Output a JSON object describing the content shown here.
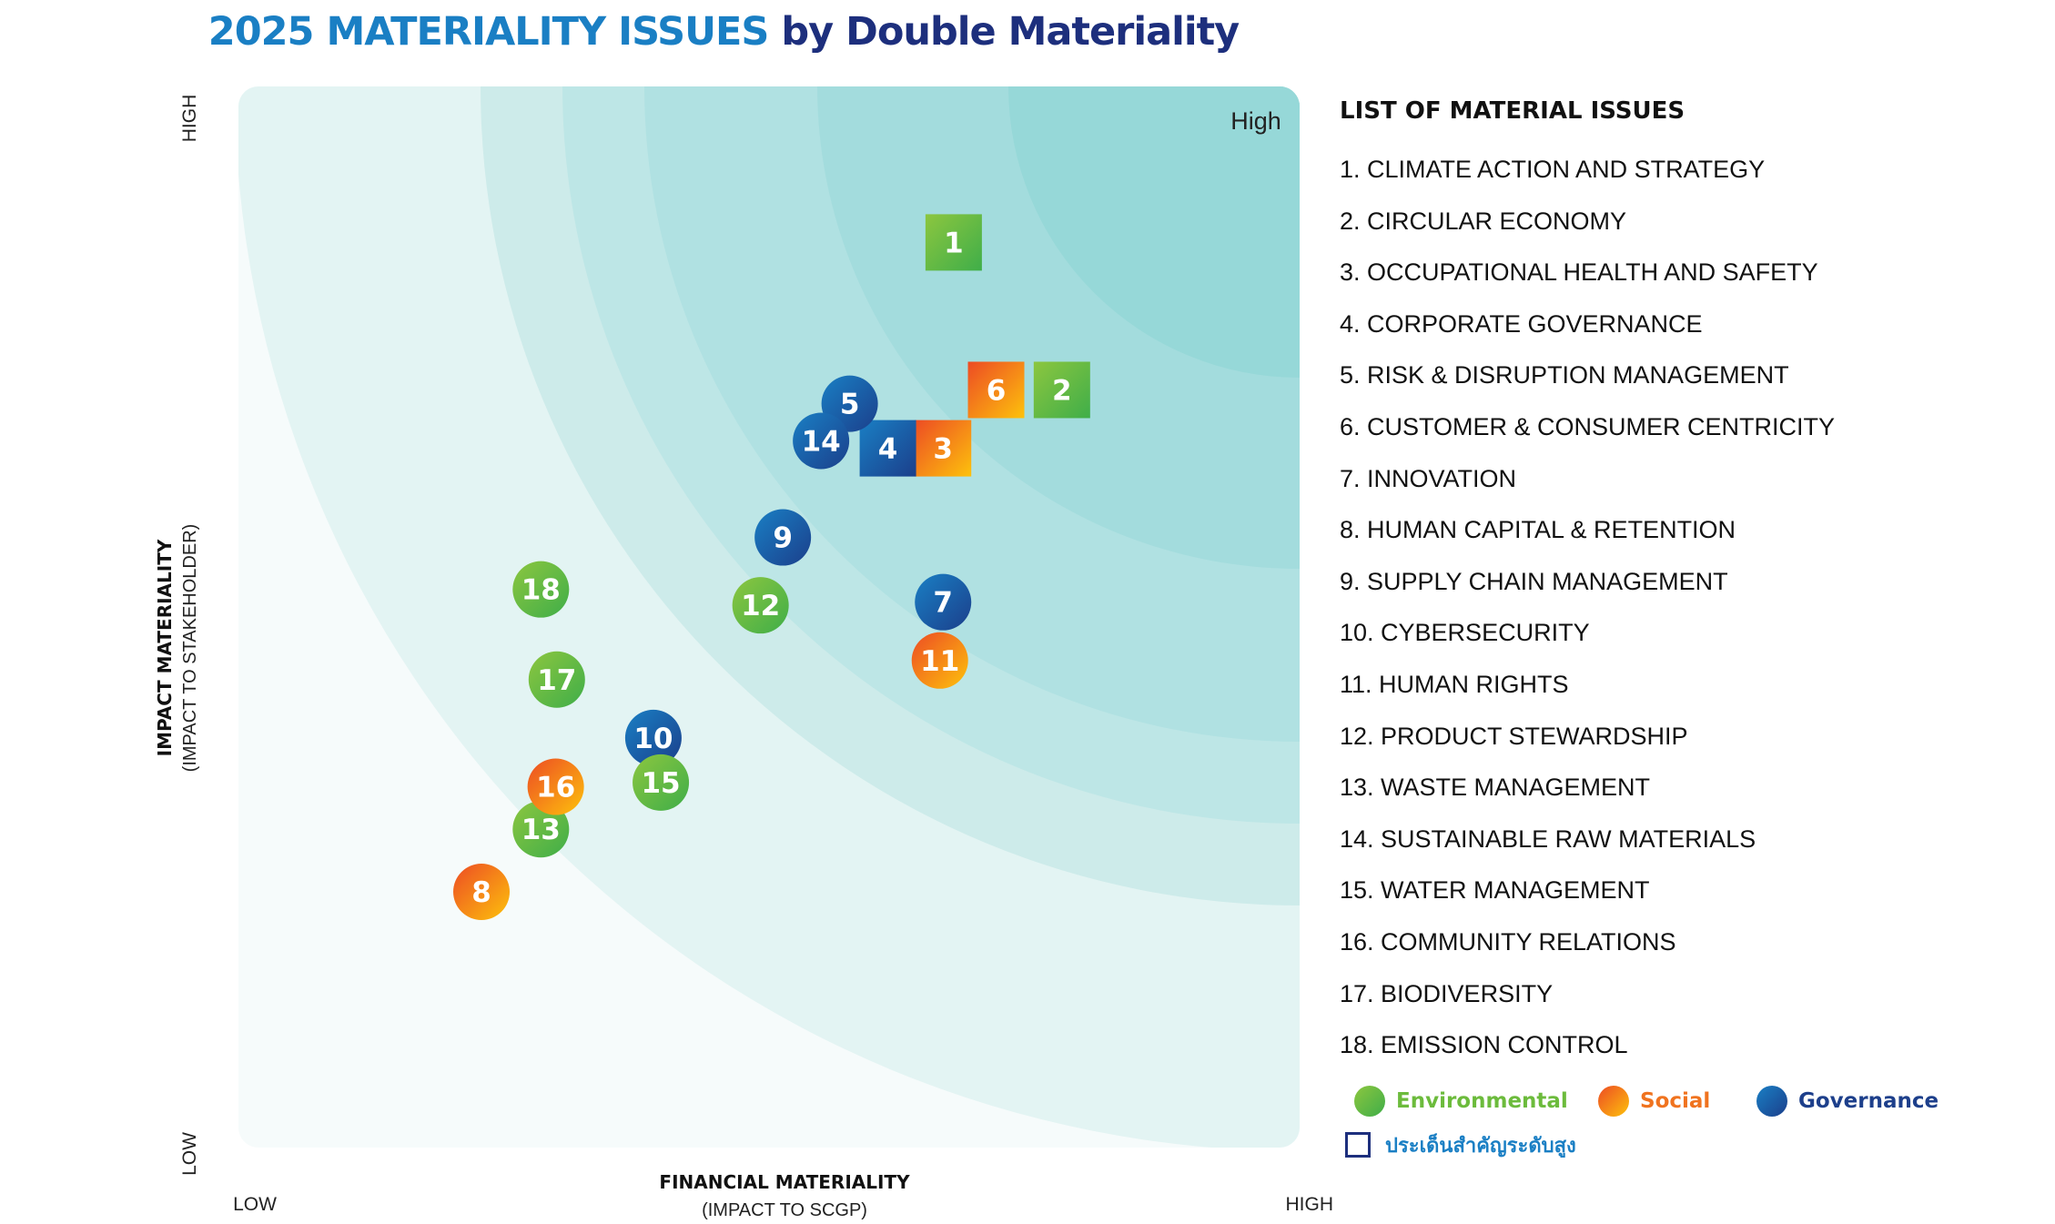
{
  "title": {
    "part1": "2025 MATERIALITY ISSUES",
    "part2": " by Double Materiality"
  },
  "colors": {
    "environmental": [
      "#8cc63f",
      "#3fae49"
    ],
    "social": [
      "#ed4b24",
      "#fdc20c"
    ],
    "governance": [
      "#1b3f8b",
      "#1a7fc4"
    ],
    "bands": [
      "#e3f4f3",
      "#cdebea",
      "#bde6e6",
      "#b0e1e2",
      "#a3dcdd",
      "#96d8d8"
    ]
  },
  "chart_data": {
    "type": "scatter",
    "xlabel": "FINANCIAL MATERIALITY",
    "xlabel_sub": "(IMPACT TO SCGP)",
    "ylabel": "IMPACT MATERIALITY",
    "ylabel_sub": "(IMPACT TO STAKEHOLDER)",
    "x_low": "LOW",
    "x_high": "HIGH",
    "y_low": "LOW",
    "y_high": "HIGH",
    "corner_label": "High",
    "xlim": [
      0,
      100
    ],
    "ylim": [
      0,
      100
    ],
    "points": [
      {
        "id": "1",
        "category": "environmental",
        "high_priority": true,
        "x": 67.4,
        "y": 85.3
      },
      {
        "id": "2",
        "category": "environmental",
        "high_priority": true,
        "x": 77.6,
        "y": 71.4
      },
      {
        "id": "3",
        "category": "social",
        "high_priority": true,
        "x": 66.4,
        "y": 65.9
      },
      {
        "id": "4",
        "category": "governance",
        "high_priority": true,
        "x": 61.2,
        "y": 65.9
      },
      {
        "id": "5",
        "category": "governance",
        "high_priority": false,
        "x": 57.6,
        "y": 70.1
      },
      {
        "id": "6",
        "category": "social",
        "high_priority": true,
        "x": 71.4,
        "y": 71.4
      },
      {
        "id": "7",
        "category": "governance",
        "high_priority": false,
        "x": 66.4,
        "y": 51.4
      },
      {
        "id": "8",
        "category": "social",
        "high_priority": false,
        "x": 22.9,
        "y": 24.1
      },
      {
        "id": "9",
        "category": "governance",
        "high_priority": false,
        "x": 51.3,
        "y": 57.5
      },
      {
        "id": "10",
        "category": "governance",
        "high_priority": false,
        "x": 39.1,
        "y": 38.6
      },
      {
        "id": "11",
        "category": "social",
        "high_priority": false,
        "x": 66.1,
        "y": 45.9
      },
      {
        "id": "12",
        "category": "environmental",
        "high_priority": false,
        "x": 49.2,
        "y": 51.1
      },
      {
        "id": "13",
        "category": "environmental",
        "high_priority": false,
        "x": 28.5,
        "y": 30.0
      },
      {
        "id": "14",
        "category": "governance",
        "high_priority": false,
        "x": 54.9,
        "y": 66.6
      },
      {
        "id": "15",
        "category": "environmental",
        "high_priority": false,
        "x": 39.8,
        "y": 34.4
      },
      {
        "id": "16",
        "category": "social",
        "high_priority": false,
        "x": 29.9,
        "y": 34.0
      },
      {
        "id": "17",
        "category": "environmental",
        "high_priority": false,
        "x": 30.0,
        "y": 44.1
      },
      {
        "id": "18",
        "category": "environmental",
        "high_priority": false,
        "x": 28.5,
        "y": 52.6
      }
    ]
  },
  "list": {
    "title": "LIST OF MATERIAL ISSUES",
    "items": [
      "1. CLIMATE ACTION AND STRATEGY",
      "2. CIRCULAR ECONOMY",
      "3. OCCUPATIONAL HEALTH AND SAFETY",
      "4. CORPORATE GOVERNANCE",
      "5. RISK & DISRUPTION MANAGEMENT",
      "6. CUSTOMER & CONSUMER CENTRICITY",
      "7. INNOVATION",
      "8. HUMAN CAPITAL & RETENTION",
      "9. SUPPLY CHAIN MANAGEMENT",
      "10. CYBERSECURITY",
      "11. HUMAN RIGHTS",
      "12. PRODUCT STEWARDSHIP",
      "13. WASTE MANAGEMENT",
      "14. SUSTAINABLE RAW MATERIALS",
      "15. WATER MANAGEMENT",
      "16. COMMUNITY RELATIONS",
      "17. BIODIVERSITY",
      "18. EMISSION CONTROL"
    ]
  },
  "legend": {
    "environmental": "Environmental",
    "social": "Social",
    "governance": "Governance",
    "high_priority": "ประเด็นสำคัญระดับสูง"
  }
}
